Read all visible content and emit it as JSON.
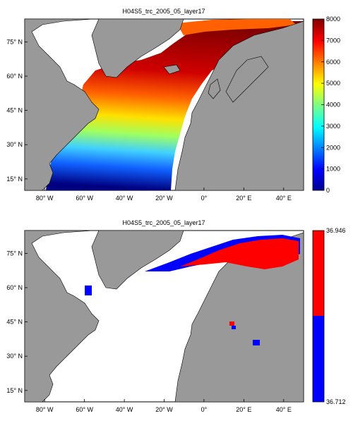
{
  "maps": [
    {
      "title": "H04S5_trc_2005_05_layer17",
      "lon_range": [
        -90,
        50
      ],
      "lat_range": [
        10,
        85
      ],
      "lon_ticks": [
        {
          "num": "80",
          "dir": "W"
        },
        {
          "num": "60",
          "dir": "W"
        },
        {
          "num": "40",
          "dir": "W"
        },
        {
          "num": "20",
          "dir": "W"
        },
        {
          "num": "0",
          "dir": ""
        },
        {
          "num": "20",
          "dir": "E"
        },
        {
          "num": "40",
          "dir": "E"
        }
      ],
      "lat_ticks": [
        {
          "num": "75",
          "dir": "N"
        },
        {
          "num": "60",
          "dir": "N"
        },
        {
          "num": "45",
          "dir": "N"
        },
        {
          "num": "30",
          "dir": "N"
        },
        {
          "num": "15",
          "dir": "N"
        }
      ],
      "colorbar": {
        "type": "continuous jet",
        "range": [
          0,
          8000
        ],
        "tick_labels": [
          "0",
          "1000",
          "2000",
          "3000",
          "4000",
          "5000",
          "6000",
          "7000",
          "8000"
        ]
      }
    },
    {
      "title": "H04S5_trc_2005_05_layer17",
      "lon_range": [
        -90,
        50
      ],
      "lat_range": [
        10,
        85
      ],
      "lon_ticks": [
        {
          "num": "80",
          "dir": "W"
        },
        {
          "num": "60",
          "dir": "W"
        },
        {
          "num": "40",
          "dir": "W"
        },
        {
          "num": "20",
          "dir": "W"
        },
        {
          "num": "0",
          "dir": ""
        },
        {
          "num": "20",
          "dir": "E"
        },
        {
          "num": "40",
          "dir": "E"
        }
      ],
      "lat_ticks": [
        {
          "num": "75",
          "dir": "N"
        },
        {
          "num": "60",
          "dir": "N"
        },
        {
          "num": "45",
          "dir": "N"
        },
        {
          "num": "30",
          "dir": "N"
        },
        {
          "num": "15",
          "dir": "N"
        }
      ],
      "colorbar": {
        "type": "two-color",
        "colors": [
          "#0000ff",
          "#ff0000"
        ],
        "tick_labels": [
          "36.712",
          "36.946"
        ]
      }
    }
  ],
  "colors": {
    "land": "#999999",
    "ocean_nodata": "#ffffff"
  }
}
